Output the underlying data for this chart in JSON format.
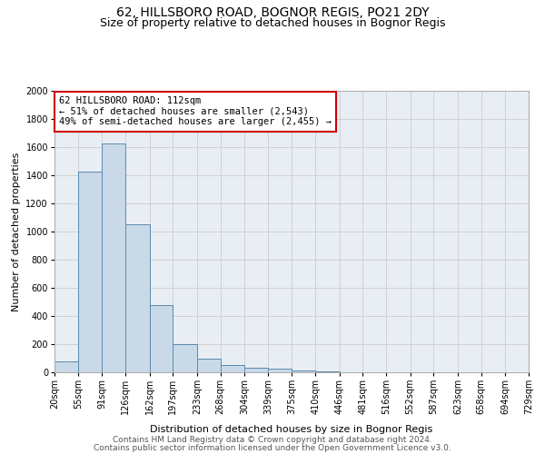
{
  "title": "62, HILLSBORO ROAD, BOGNOR REGIS, PO21 2DY",
  "subtitle": "Size of property relative to detached houses in Bognor Regis",
  "xlabel": "Distribution of detached houses by size in Bognor Regis",
  "ylabel": "Number of detached properties",
  "annotation_line1": "62 HILLSBORO ROAD: 112sqm",
  "annotation_line2": "← 51% of detached houses are smaller (2,543)",
  "annotation_line3": "49% of semi-detached houses are larger (2,455) →",
  "footer_line1": "Contains HM Land Registry data © Crown copyright and database right 2024.",
  "footer_line2": "Contains public sector information licensed under the Open Government Licence v3.0.",
  "bar_left_edges": [
    20,
    55,
    91,
    126,
    162,
    197,
    233,
    268,
    304,
    339,
    375,
    410,
    446,
    481,
    516,
    552,
    587,
    623,
    658,
    694
  ],
  "bar_widths": [
    35,
    36,
    35,
    36,
    35,
    36,
    35,
    36,
    35,
    36,
    35,
    36,
    35,
    36,
    35,
    36,
    35,
    36,
    35,
    35
  ],
  "bar_heights": [
    75,
    1425,
    1625,
    1050,
    475,
    200,
    100,
    50,
    30,
    25,
    15,
    5,
    0,
    0,
    0,
    0,
    0,
    0,
    0,
    0
  ],
  "bar_color": "#c9d9e8",
  "bar_edgecolor": "#5a8ab0",
  "ylim": [
    0,
    2000
  ],
  "yticks": [
    0,
    200,
    400,
    600,
    800,
    1000,
    1200,
    1400,
    1600,
    1800,
    2000
  ],
  "xtick_labels": [
    "20sqm",
    "55sqm",
    "91sqm",
    "126sqm",
    "162sqm",
    "197sqm",
    "233sqm",
    "268sqm",
    "304sqm",
    "339sqm",
    "375sqm",
    "410sqm",
    "446sqm",
    "481sqm",
    "516sqm",
    "552sqm",
    "587sqm",
    "623sqm",
    "658sqm",
    "694sqm",
    "729sqm"
  ],
  "grid_color": "#cccccc",
  "bg_color": "#e8eef4",
  "annotation_box_color": "#cc0000",
  "title_fontsize": 10,
  "subtitle_fontsize": 9,
  "axis_label_fontsize": 8,
  "tick_fontsize": 7,
  "annotation_fontsize": 7.5,
  "footer_fontsize": 6.5
}
